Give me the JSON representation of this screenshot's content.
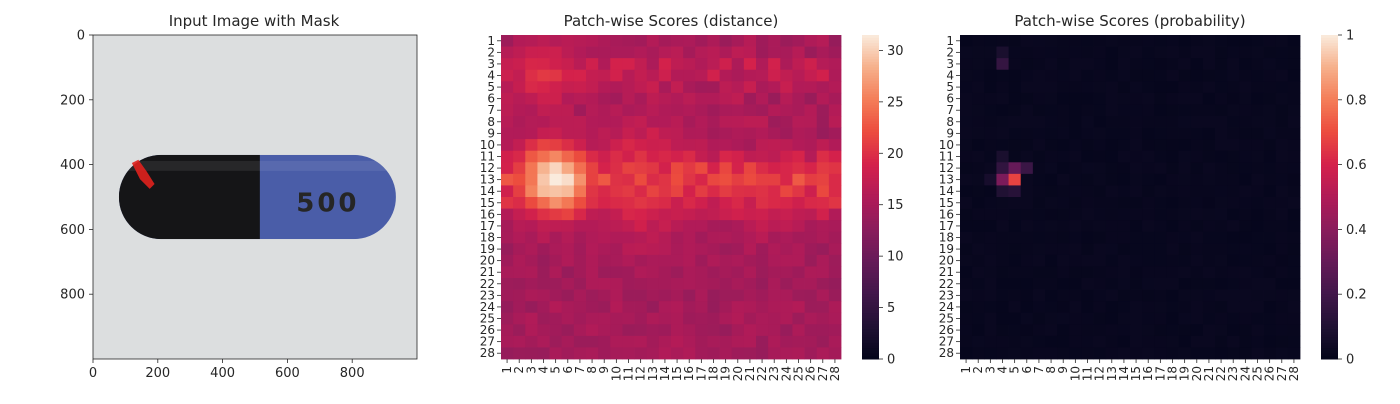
{
  "colors": {
    "background": "#ffffff",
    "text": "#262626",
    "image_bg": "#dcdedf",
    "capsule_black": "#151517",
    "capsule_blue": "#4a5da8",
    "print_text": "#a4abc8",
    "mask_red": "#e0211d"
  },
  "chart_data": [
    {
      "type": "image",
      "title": "Input Image with Mask",
      "x_ticks": [
        0,
        200,
        400,
        600,
        800
      ],
      "y_ticks": [
        0,
        200,
        400,
        600,
        800
      ],
      "xlim": [
        0,
        1000
      ],
      "ylim": [
        1000,
        0
      ],
      "imprint": "500",
      "xlabel": "",
      "ylabel": ""
    },
    {
      "type": "heatmap",
      "title": "Patch-wise Scores (distance)",
      "rows": 28,
      "cols": 28,
      "colormap": "rocket",
      "vmin": 0,
      "vmax": 31.5,
      "colorbar_ticks": [
        0,
        5,
        10,
        15,
        20,
        25,
        30
      ],
      "baseline_value": 14.5,
      "row_profile": [
        15,
        15,
        17,
        17,
        16,
        15,
        15,
        15,
        14,
        15,
        18,
        20,
        21,
        20,
        19,
        17,
        14,
        13,
        13,
        13,
        13,
        13,
        13,
        14,
        14,
        14,
        14,
        14
      ],
      "hotspots": [
        {
          "row": 13,
          "col": 5,
          "value": 31.5,
          "radius": 2.2
        },
        {
          "row": 4,
          "col": 4,
          "value": 21.0,
          "radius": 1.8
        },
        {
          "row": 13,
          "col": 12,
          "value": 20.5,
          "radius": 3.5
        },
        {
          "row": 14,
          "col": 23,
          "value": 19.0,
          "radius": 2.5
        }
      ]
    },
    {
      "type": "heatmap",
      "title": "Patch-wise Scores (probability)",
      "rows": 28,
      "cols": 28,
      "colormap": "rocket",
      "vmin": 0,
      "vmax": 1.0,
      "colorbar_ticks": [
        0.0,
        0.2,
        0.4,
        0.6,
        0.8,
        1.0
      ],
      "baseline_value": 0.01,
      "hotspots": [
        {
          "row": 13,
          "col": 5,
          "value": 0.68,
          "radius": 0.5
        },
        {
          "row": 13,
          "col": 4,
          "value": 0.36,
          "radius": 0.5
        },
        {
          "row": 12,
          "col": 5,
          "value": 0.3,
          "radius": 0.5
        },
        {
          "row": 12,
          "col": 4,
          "value": 0.15,
          "radius": 0.5
        },
        {
          "row": 12,
          "col": 6,
          "value": 0.18,
          "radius": 0.5
        },
        {
          "row": 3,
          "col": 4,
          "value": 0.16,
          "radius": 0.5
        },
        {
          "row": 2,
          "col": 4,
          "value": 0.08,
          "radius": 0.5
        },
        {
          "row": 14,
          "col": 4,
          "value": 0.1,
          "radius": 0.5
        },
        {
          "row": 14,
          "col": 5,
          "value": 0.12,
          "radius": 0.5
        },
        {
          "row": 11,
          "col": 4,
          "value": 0.08,
          "radius": 0.5
        },
        {
          "row": 13,
          "col": 3,
          "value": 0.07,
          "radius": 0.5
        }
      ]
    }
  ]
}
